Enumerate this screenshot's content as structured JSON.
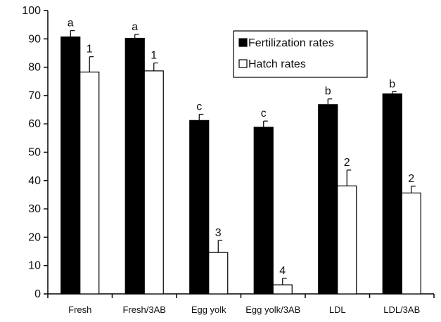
{
  "chart_data": {
    "type": "bar",
    "title": "",
    "xlabel": "",
    "ylabel": "",
    "ylim": [
      0,
      100
    ],
    "yticks": [
      0,
      10,
      20,
      30,
      40,
      50,
      60,
      70,
      80,
      90,
      100
    ],
    "grid": false,
    "legend_position": "top-right",
    "categories": [
      "Fresh",
      "Fresh/3AB",
      "Egg yolk",
      "Egg yolk/3AB",
      "LDL",
      "LDL/3AB"
    ],
    "series": [
      {
        "name": "Fertilization rates",
        "color": "#000000",
        "values": [
          90.7,
          90.2,
          61.2,
          58.8,
          66.8,
          70.6
        ],
        "errors": [
          2.2,
          1.4,
          2.2,
          2.2,
          2.0,
          0.8
        ],
        "labels": [
          "a",
          "a",
          "c",
          "c",
          "b",
          "b"
        ]
      },
      {
        "name": "Hatch rates",
        "color": "#ffffff",
        "values": [
          78.3,
          78.7,
          14.6,
          3.2,
          38.1,
          35.6
        ],
        "errors": [
          5.4,
          2.8,
          4.3,
          2.3,
          5.6,
          2.4
        ],
        "labels": [
          "1",
          "1",
          "3",
          "4",
          "2",
          "2"
        ]
      }
    ]
  }
}
